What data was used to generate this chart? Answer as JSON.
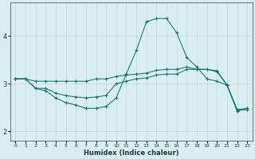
{
  "xlabel": "Humidex (Indice chaleur)",
  "bg_color": "#d8eef0",
  "line_color": "#1a7070",
  "grid_color": "#c0d8dc",
  "xlim": [
    -0.5,
    23.5
  ],
  "ylim": [
    1.8,
    4.7
  ],
  "yticks": [
    2,
    3,
    4
  ],
  "xticks": [
    0,
    1,
    2,
    3,
    4,
    5,
    6,
    7,
    8,
    9,
    10,
    11,
    12,
    13,
    14,
    15,
    16,
    17,
    18,
    19,
    20,
    21,
    22,
    23
  ],
  "series": [
    {
      "x": [
        0,
        1,
        2,
        3,
        4,
        5,
        6,
        7,
        8,
        9,
        10,
        11,
        12,
        13,
        14,
        15,
        16,
        17,
        18,
        19,
        20,
        21,
        22,
        23
      ],
      "y": [
        3.1,
        3.1,
        3.05,
        3.05,
        3.05,
        3.05,
        3.05,
        3.05,
        3.1,
        3.1,
        3.15,
        3.18,
        3.2,
        3.22,
        3.28,
        3.3,
        3.3,
        3.35,
        3.3,
        3.3,
        3.25,
        2.97,
        2.45,
        2.45
      ]
    },
    {
      "x": [
        0,
        1,
        2,
        3,
        4,
        5,
        6,
        7,
        8,
        9,
        10,
        11,
        12,
        13,
        14,
        15,
        16,
        17,
        18,
        19,
        20,
        21,
        22,
        23
      ],
      "y": [
        3.1,
        3.1,
        2.9,
        2.9,
        2.8,
        2.75,
        2.72,
        2.7,
        2.72,
        2.75,
        3.0,
        3.05,
        3.1,
        3.12,
        3.18,
        3.2,
        3.2,
        3.3,
        3.3,
        3.3,
        3.27,
        2.97,
        2.45,
        2.48
      ]
    },
    {
      "x": [
        0,
        1,
        2,
        3,
        4,
        5,
        6,
        7,
        8,
        9,
        10,
        11,
        12,
        13,
        14,
        15,
        16,
        17,
        18,
        19,
        20,
        21,
        22,
        23
      ],
      "y": [
        3.1,
        3.1,
        2.9,
        2.85,
        2.7,
        2.6,
        2.55,
        2.48,
        2.48,
        2.52,
        2.7,
        3.2,
        3.7,
        4.3,
        4.37,
        4.37,
        4.07,
        3.55,
        3.35,
        3.1,
        3.05,
        2.97,
        2.42,
        2.48
      ]
    }
  ]
}
